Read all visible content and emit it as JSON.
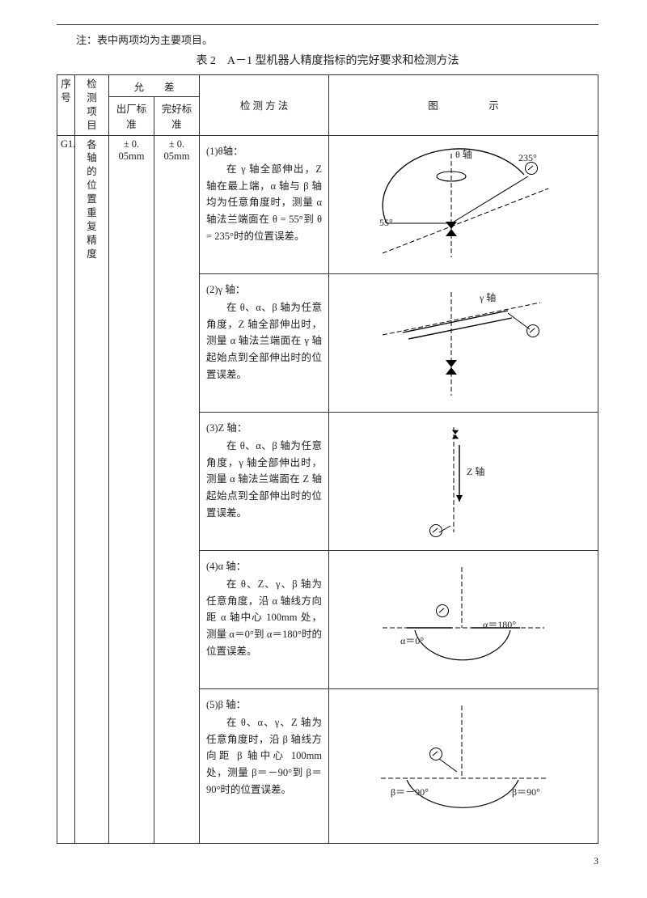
{
  "note": "注：表中两项均为主要项目。",
  "table_title": "表 2　A－1 型机器人精度指标的完好要求和检测方法",
  "headers": {
    "seq": "序号",
    "item": "检测项目",
    "tolerance": "允　　差",
    "factory": "出厂标准",
    "good": "完好标准",
    "method": "检 测 方 法",
    "diagram": "图　　　　　示"
  },
  "row": {
    "seq": "G1.",
    "item_lines": [
      "各",
      "轴",
      "的",
      "位",
      "置",
      "重",
      "复",
      "精",
      "度"
    ],
    "factory": "± 0. 05mm",
    "good": "± 0. 05mm"
  },
  "methods": [
    {
      "h": "(1)θ轴：",
      "body": "在 γ 轴全部伸出，Z 轴在最上端，α 轴与 β 轴均为任意角度时，测量 α 轴法兰端面在 θ = 55°到 θ = 235°时的位置误差。"
    },
    {
      "h": "(2)γ 轴：",
      "body": "在 θ、α、β 轴为任意角度，Z 轴全部伸出时，测量 α 轴法兰端面在 γ 轴起始点到全部伸出时的位置误差。"
    },
    {
      "h": "(3)Z 轴：",
      "body": "在 θ、α、β 轴为任意角度，γ 轴全部伸出时，测量 α 轴法兰端面在 Z 轴起始点到全部伸出时的位置误差。"
    },
    {
      "h": "(4)α 轴：",
      "body": "在 θ、Z、γ、β 轴为任意角度，沿 α 轴线方向距 α 轴中心 100mm 处，测量 α＝0°到 α＝180°时的位置误差。"
    },
    {
      "h": "(5)β 轴：",
      "body": "在 θ、α、γ、Z 轴为任意角度时，沿 β 轴线方向距 β 轴中心 100mm 处，测量 β＝－90°到 β＝90°时的位置误差。"
    }
  ],
  "diagrams": {
    "d1": {
      "theta": "θ 轴",
      "a235": "235°",
      "a55": "55°"
    },
    "d2": {
      "gamma": "γ 轴"
    },
    "d3": {
      "z": "Z 轴"
    },
    "d4": {
      "a0": "α＝0°",
      "a180": "α＝180°"
    },
    "d5": {
      "bm90": "β＝－90°",
      "b90": "β＝90°"
    }
  },
  "page": "3"
}
